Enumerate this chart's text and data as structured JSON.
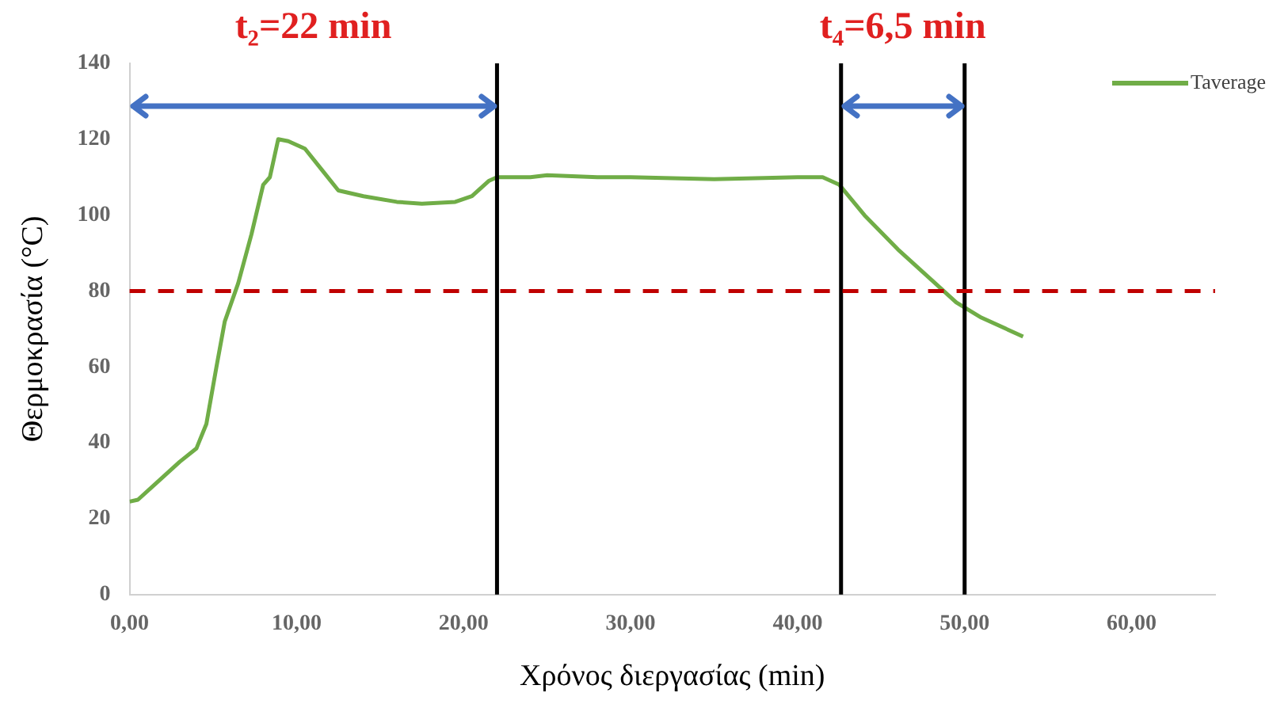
{
  "chart_data": {
    "type": "line",
    "xlabel": "Χρόνος διεργασίας (min)",
    "ylabel": "Θερμοκρασία (°C)",
    "annotations": [
      "t₂=22 min",
      "t₄=6,5 min"
    ],
    "x": [
      0,
      0.5,
      1.5,
      3,
      4,
      4.6,
      5.2,
      5.7,
      6.5,
      7.3,
      8,
      8.4,
      8.9,
      9.5,
      10.5,
      11.5,
      12.5,
      14,
      16,
      17.5,
      19.5,
      20.5,
      21.5,
      22,
      24,
      25,
      28,
      30,
      35,
      40,
      41.5,
      42.5,
      44,
      46,
      48,
      49.5,
      51,
      53.5
    ],
    "series": [
      {
        "name": "Taverage",
        "color": "#70ad47",
        "values": [
          24.5,
          25,
          29,
          35,
          38.5,
          45,
          60,
          72,
          82,
          95,
          108,
          110,
          120,
          119.5,
          117.5,
          112,
          106.5,
          105,
          103.5,
          103,
          103.5,
          105,
          109,
          110,
          110,
          110.5,
          110,
          110,
          109.5,
          110,
          110,
          108,
          100,
          91,
          83,
          77,
          73,
          68
        ]
      }
    ],
    "xlim": [
      0,
      65
    ],
    "xticks": [
      {
        "value": 0,
        "label": "0,00"
      },
      {
        "value": 10,
        "label": "10,00"
      },
      {
        "value": 20,
        "label": "20,00"
      },
      {
        "value": 30,
        "label": "30,00"
      },
      {
        "value": 40,
        "label": "40,00"
      },
      {
        "value": 50,
        "label": "50,00"
      },
      {
        "value": 60,
        "label": "60,00"
      }
    ],
    "ylim": [
      0,
      140
    ],
    "yticks": [
      0,
      20,
      40,
      60,
      80,
      100,
      120,
      140
    ],
    "ref_lines": [
      {
        "axis": "x",
        "value": 22,
        "color": "#000000"
      },
      {
        "axis": "x",
        "value": 42.6,
        "color": "#000000"
      },
      {
        "axis": "x",
        "value": 50,
        "color": "#000000"
      },
      {
        "axis": "y",
        "value": 80,
        "color": "#c00000",
        "line_style": "dashed"
      }
    ],
    "grid": false,
    "legend": "top right",
    "marker": "none",
    "line_style": "solid"
  }
}
